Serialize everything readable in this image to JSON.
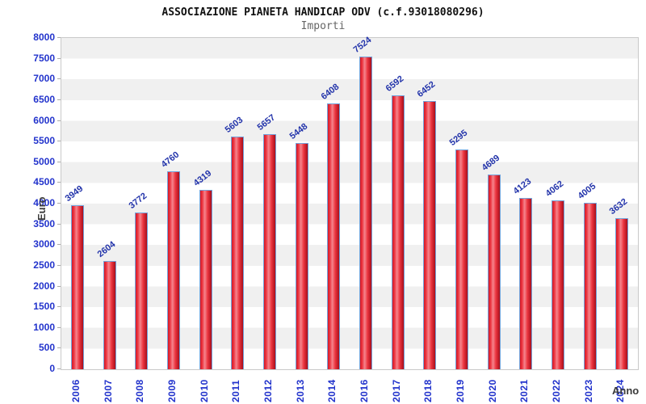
{
  "header": {
    "title": "ASSOCIAZIONE PIANETA HANDICAP ODV (c.f.93018080296)",
    "subtitle": "Importi"
  },
  "chart_data": {
    "type": "bar",
    "title": "ASSOCIAZIONE PIANETA HANDICAP ODV (c.f.93018080296)",
    "subtitle": "Importi",
    "xlabel": "Anno",
    "ylabel": "Euro",
    "categories": [
      "2006",
      "2007",
      "2008",
      "2009",
      "2010",
      "2011",
      "2012",
      "2013",
      "2014",
      "2016",
      "2017",
      "2018",
      "2019",
      "2020",
      "2021",
      "2022",
      "2023",
      "2024"
    ],
    "values": [
      3949,
      2604,
      3772,
      4760,
      4319,
      5603,
      5657,
      5448,
      6408,
      7524,
      6592,
      6452,
      5295,
      4689,
      4123,
      4062,
      4005,
      3632
    ],
    "ylim": [
      0,
      8000
    ],
    "ytick_step": 500,
    "grid": "horizontal-bands",
    "legend": "none",
    "colors": {
      "bar_gradient": [
        "#d41826",
        "#ec3540",
        "#f5858d",
        "#ec3540",
        "#a80f1b"
      ],
      "bar_border": "#73a3db",
      "value_label": "#2233aa",
      "tick_label": "#2233cc",
      "axis_title": "#3a3a3a",
      "band_gray": "#f0f0f0",
      "band_white": "#ffffff",
      "plot_border": "#c9c9c9"
    }
  }
}
